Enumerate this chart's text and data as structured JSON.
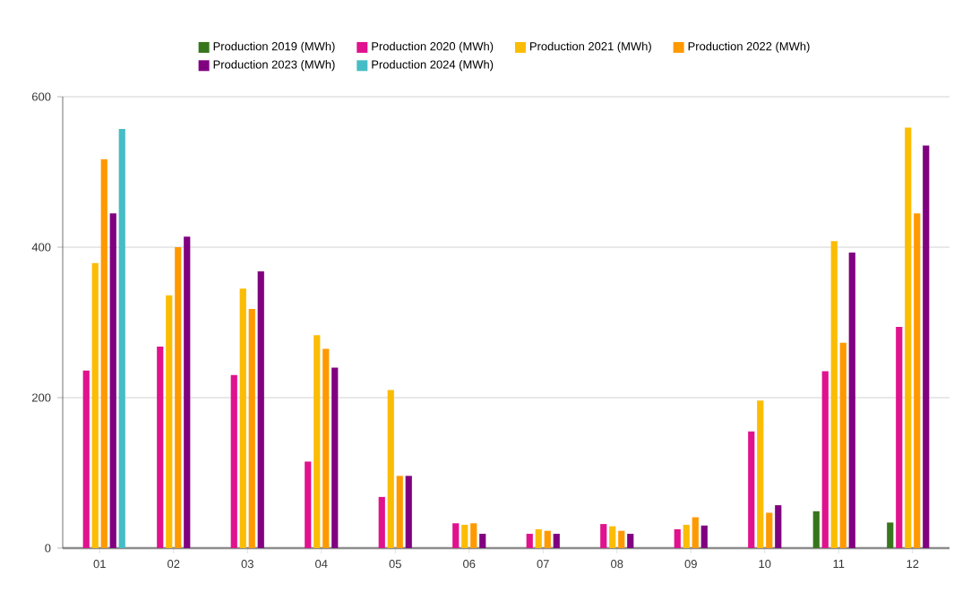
{
  "chart_data": {
    "type": "bar",
    "categories": [
      "01",
      "02",
      "03",
      "04",
      "05",
      "06",
      "07",
      "08",
      "09",
      "10",
      "11",
      "12"
    ],
    "series": [
      {
        "name": "Production 2019 (MWh)",
        "color": "#38761d",
        "values": [
          null,
          null,
          null,
          null,
          null,
          null,
          null,
          null,
          null,
          null,
          49,
          34
        ]
      },
      {
        "name": "Production 2020 (MWh)",
        "color": "#e0128e",
        "values": [
          236,
          268,
          230,
          115,
          68,
          33,
          19,
          32,
          25,
          155,
          235,
          294
        ]
      },
      {
        "name": "Production 2021 (MWh)",
        "color": "#fbbc04",
        "values": [
          379,
          336,
          345,
          283,
          210,
          31,
          25,
          29,
          31,
          196,
          408,
          559
        ]
      },
      {
        "name": "Production 2022 (MWh)",
        "color": "#ff9900",
        "values": [
          517,
          400,
          318,
          265,
          96,
          33,
          23,
          23,
          41,
          47,
          273,
          445
        ]
      },
      {
        "name": "Production 2023 (MWh)",
        "color": "#800080",
        "values": [
          445,
          414,
          368,
          240,
          96,
          19,
          19,
          19,
          30,
          57,
          393,
          535
        ]
      },
      {
        "name": "Production 2024 (MWh)",
        "color": "#46bdc6",
        "values": [
          557,
          null,
          null,
          null,
          null,
          null,
          null,
          null,
          null,
          null,
          null,
          null
        ]
      }
    ],
    "ylim": [
      0,
      600
    ],
    "yticks": [
      0,
      200,
      400,
      600
    ],
    "grid": "y",
    "legend": "top"
  }
}
